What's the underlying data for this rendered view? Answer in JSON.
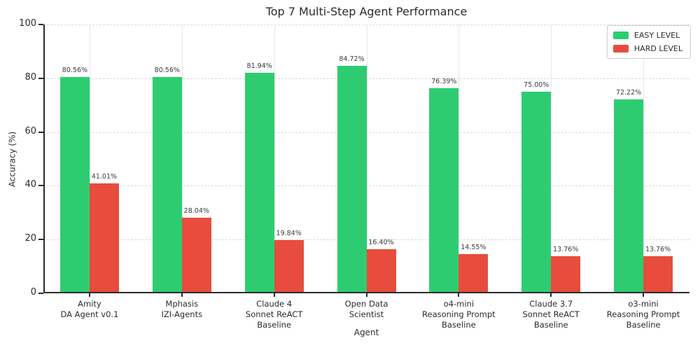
{
  "chart_data": {
    "type": "bar",
    "title": "Top 7 Multi-Step Agent Performance",
    "xlabel": "Agent",
    "ylabel": "Accuracy (%)",
    "ylim": [
      0,
      100
    ],
    "yticks": [
      0,
      20,
      40,
      60,
      80,
      100
    ],
    "grid": true,
    "legend_position": "upper right",
    "axis_color": "#2b2b2b",
    "grid_color": "#d9d9d9",
    "categories": [
      [
        "Amity",
        "DA Agent v0.1"
      ],
      [
        "Mphasis",
        "IZI-Agents"
      ],
      [
        "Claude 4",
        "Sonnet ReACT",
        "Baseline"
      ],
      [
        "Open Data",
        "Scientist"
      ],
      [
        "o4-mini",
        "Reasoning Prompt",
        "Baseline"
      ],
      [
        "Claude 3.7",
        "Sonnet ReACT",
        "Baseline"
      ],
      [
        "o3-mini",
        "Reasoning Prompt",
        "Baseline"
      ]
    ],
    "series": [
      {
        "name": "EASY LEVEL",
        "color": "#2ecc71",
        "values": [
          80.56,
          80.56,
          81.94,
          84.72,
          76.39,
          75.0,
          72.22
        ],
        "labels": [
          "80.56%",
          "80.56%",
          "81.94%",
          "84.72%",
          "76.39%",
          "75.00%",
          "72.22%"
        ]
      },
      {
        "name": "HARD LEVEL",
        "color": "#e74c3c",
        "values": [
          41.01,
          28.04,
          19.84,
          16.4,
          14.55,
          13.76,
          13.76
        ],
        "labels": [
          "41.01%",
          "28.04%",
          "19.84%",
          "16.40%",
          "14.55%",
          "13.76%",
          "13.76%"
        ]
      }
    ]
  }
}
